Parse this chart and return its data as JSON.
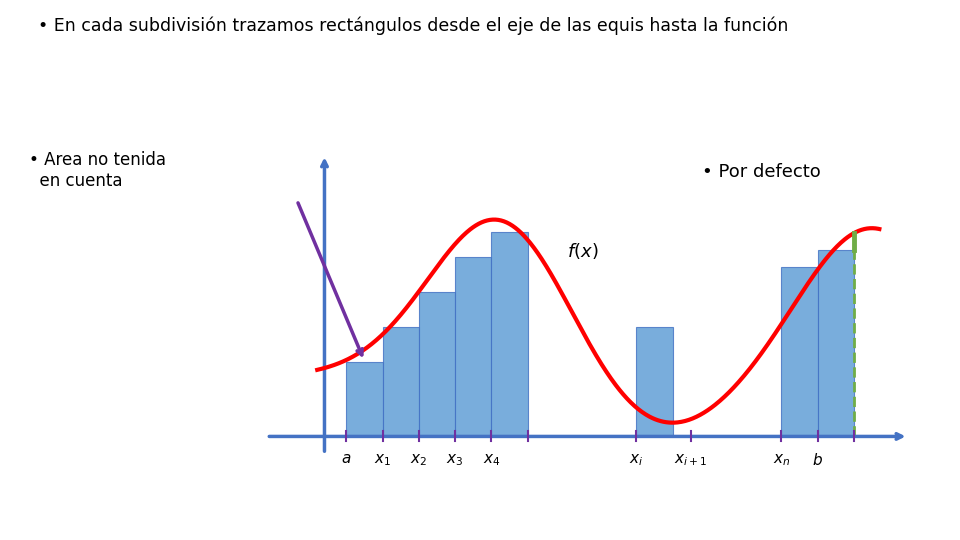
{
  "title_text": "En cada subdivisión trazamos rectángulos desde el eje de las equis hasta la función",
  "label_por_defecto": "• Por defecto",
  "label_area": "• Area no tenida\n  en cuenta",
  "label_fx": "$f(x)$",
  "bar_color": "#5B9BD5",
  "bar_edge_color": "#4472C4",
  "axis_color": "#4472C4",
  "curve_color": "#FF0000",
  "arrow_color": "#7030A0",
  "tick_color": "#7030A0",
  "green_dashed_color": "#70AD47",
  "background_color": "#FFFFFF",
  "bar_lefts": [
    1.0,
    1.5,
    2.0,
    2.5,
    3.0,
    5.0,
    7.0,
    7.5
  ],
  "bar_heights": [
    1.05,
    1.55,
    2.05,
    2.55,
    2.9,
    1.55,
    2.4,
    2.65
  ],
  "bar_width": 0.5,
  "tick_xs": [
    1.0,
    1.5,
    2.0,
    2.5,
    3.0,
    3.5,
    5.0,
    5.75,
    7.0,
    7.5,
    8.0
  ],
  "label_configs": [
    [
      1.0,
      "$a$"
    ],
    [
      1.5,
      "$x_1$"
    ],
    [
      2.0,
      "$x_2$"
    ],
    [
      2.5,
      "$x_3$"
    ],
    [
      3.0,
      "$x_4$"
    ],
    [
      5.0,
      "$x_i$"
    ],
    [
      5.75,
      "$x_{i+1}$"
    ],
    [
      7.0,
      "$x_n$"
    ],
    [
      7.5,
      "$b$"
    ]
  ],
  "xlim": [
    -0.2,
    8.8
  ],
  "ylim": [
    -0.55,
    4.2
  ],
  "fig_width": 9.6,
  "fig_height": 5.4,
  "dpi": 100
}
